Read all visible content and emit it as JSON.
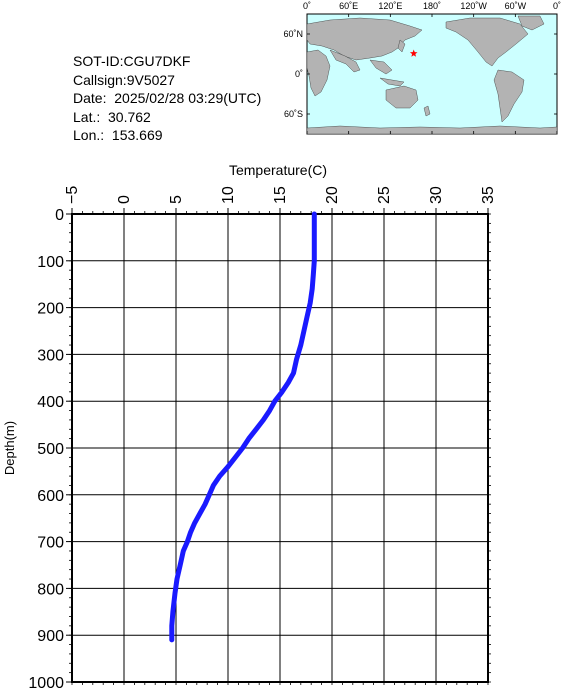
{
  "info": {
    "sot_id": "SOT-ID:CGU7DKF",
    "callsign": "Callsign:9V5027",
    "date": "Date:  2025/02/28 03:29(UTC)",
    "lat": "Lat.:  30.762",
    "lon": "Lon.:  153.669"
  },
  "map": {
    "top_labels": [
      "0˚",
      "60˚E",
      "120˚E",
      "180˚",
      "120˚W",
      "60˚W",
      "0˚"
    ],
    "side_labels": [
      "60˚N",
      "0˚",
      "60˚S"
    ],
    "marker": {
      "lat": 30.762,
      "lon": 153.669,
      "color": "#ff0000"
    },
    "ocean_color": "#ccffff",
    "land_color": "#b3b3b3"
  },
  "chart_data": {
    "type": "line",
    "xlabel": "Temperature(C)",
    "ylabel": "Depth(m)",
    "xlim": [
      -5,
      35
    ],
    "ylim": [
      1000,
      0
    ],
    "x_ticks": [
      -5,
      0,
      5,
      10,
      15,
      20,
      25,
      30,
      35
    ],
    "y_ticks": [
      0,
      100,
      200,
      300,
      400,
      500,
      600,
      700,
      800,
      900,
      1000
    ],
    "grid": true,
    "line_color": "#1a1aff",
    "series": [
      {
        "x": [
          18.3,
          18.3,
          18.3,
          18.2,
          18.1,
          17.9,
          17.6,
          17.3,
          17.0,
          16.6,
          16.3,
          15.8,
          15.2,
          14.5,
          14.0,
          13.4,
          12.7,
          12.0,
          11.4,
          10.7,
          10.0,
          9.2,
          8.6,
          8.2,
          7.8,
          7.3,
          6.8,
          6.4,
          6.1,
          5.7,
          5.4,
          5.1,
          4.9,
          4.7,
          4.6,
          4.6
        ],
        "y": [
          0,
          50,
          100,
          130,
          160,
          190,
          220,
          250,
          280,
          310,
          340,
          360,
          380,
          400,
          420,
          440,
          460,
          480,
          500,
          520,
          540,
          560,
          580,
          600,
          620,
          640,
          660,
          680,
          700,
          720,
          750,
          780,
          810,
          850,
          880,
          910
        ]
      }
    ]
  }
}
